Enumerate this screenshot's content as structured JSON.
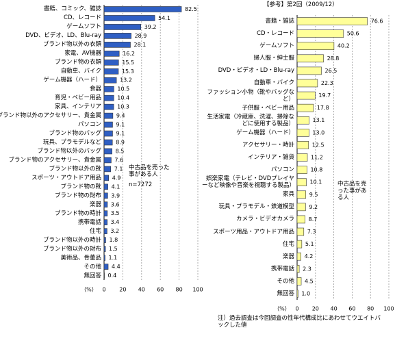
{
  "chart_data": [
    {
      "type": "hbar",
      "categories": [
        "書籍、コミック、雑誌",
        "CD、レコード",
        "ゲームソフト",
        "DVD、ビデオ、LD、Blu-ray",
        "ブランド物以外の衣類",
        "家電、AV機器",
        "ブランド物の衣類",
        "自動車、バイク",
        "ゲーム機器（ハード）",
        "食器",
        "育児・ベビー用品",
        "家具、インテリア",
        "ブランド物以外のアクセサリー、貴金属",
        "パソコン",
        "ブランド物のバッグ",
        "玩具、プラモデルなど",
        "ブランド物以外のバッグ",
        "ブランド物のアクセサリー、貴金属",
        "ブランド物以外の靴",
        "スポーツ・アウトドア用品",
        "ブランド物の靴",
        "ブランド物の財布",
        "楽器",
        "ブランド物の時計",
        "携帯電話",
        "住宅",
        "ブランド物以外の時計",
        "ブランド物以外の財布",
        "美術品、骨董品",
        "その他",
        "無回答"
      ],
      "values": [
        82.5,
        54.1,
        39.2,
        28.9,
        28.1,
        16.2,
        15.5,
        15.3,
        13.2,
        10.5,
        10.4,
        10.3,
        9.4,
        9.1,
        9.1,
        8.9,
        8.5,
        7.6,
        7.1,
        4.9,
        4.1,
        3.9,
        3.6,
        3.5,
        3.4,
        3.2,
        1.8,
        1.5,
        1.1,
        4.4,
        0.4
      ],
      "color": "#2f5fc4",
      "xlabel": "（%）",
      "xlim": [
        0,
        100
      ],
      "xticks": [
        0,
        20,
        40,
        60,
        80,
        100
      ],
      "grid": true,
      "annotations": [
        "中古品を売った事がある人",
        "n=7272"
      ]
    },
    {
      "type": "hbar",
      "title": "【参考】第2回（2009/12）",
      "categories": [
        "書籍・雑誌",
        "CD・レコード",
        "ゲームソフト",
        "婦人服・紳士服",
        "DVD・ビデオ・LD・Blu-ray",
        "自動車・バイク",
        "ファッション小物（靴やバッグなど）",
        "子供服・ベビー用品",
        "生活家電（冷蔵庫、洗濯、掃除などに使用する製品）",
        "ゲーム機器（ハード）",
        "アクセサリー・時計",
        "インテリア・雑貨",
        "パソコン",
        "娯楽家電（テレビ・DVDプレイヤーなど映像や音楽を視聴する製品）",
        "家具",
        "玩具・プラモデル・鉄道模型",
        "カメラ・ビデオカメラ",
        "スポーツ用品・アウトドア用品",
        "住宅",
        "楽器",
        "携帯電話",
        "その他",
        "無回答"
      ],
      "values": [
        76.6,
        50.6,
        40.2,
        28.8,
        26.5,
        22.3,
        19.7,
        17.8,
        13.1,
        13.0,
        12.5,
        11.2,
        10.8,
        10.1,
        9.5,
        9.2,
        8.7,
        7.3,
        5.1,
        4.2,
        2.3,
        4.5,
        1.0
      ],
      "value_labels": [
        "76.6",
        "50.6",
        "40.2",
        "28.8",
        "26.5",
        "22.3",
        "19.7",
        "17.8",
        "13.1",
        "13.0",
        "12.5",
        "11.2",
        "10.8",
        "10.1",
        "9.5",
        "9.2",
        "8.7",
        "7.3",
        "5.1",
        "4.2",
        "2.3",
        "4.5",
        "1.0"
      ],
      "color": "#ffff99",
      "xlabel": "（%）",
      "xlim": [
        0,
        100
      ],
      "xticks": [
        0,
        20,
        40,
        60,
        80,
        100
      ],
      "grid": true,
      "annotations": [
        "中古品を売った事がある人"
      ],
      "note": "注）過去調査は今回調査の性年代構成比にあわせてウエイトバックした値"
    }
  ]
}
